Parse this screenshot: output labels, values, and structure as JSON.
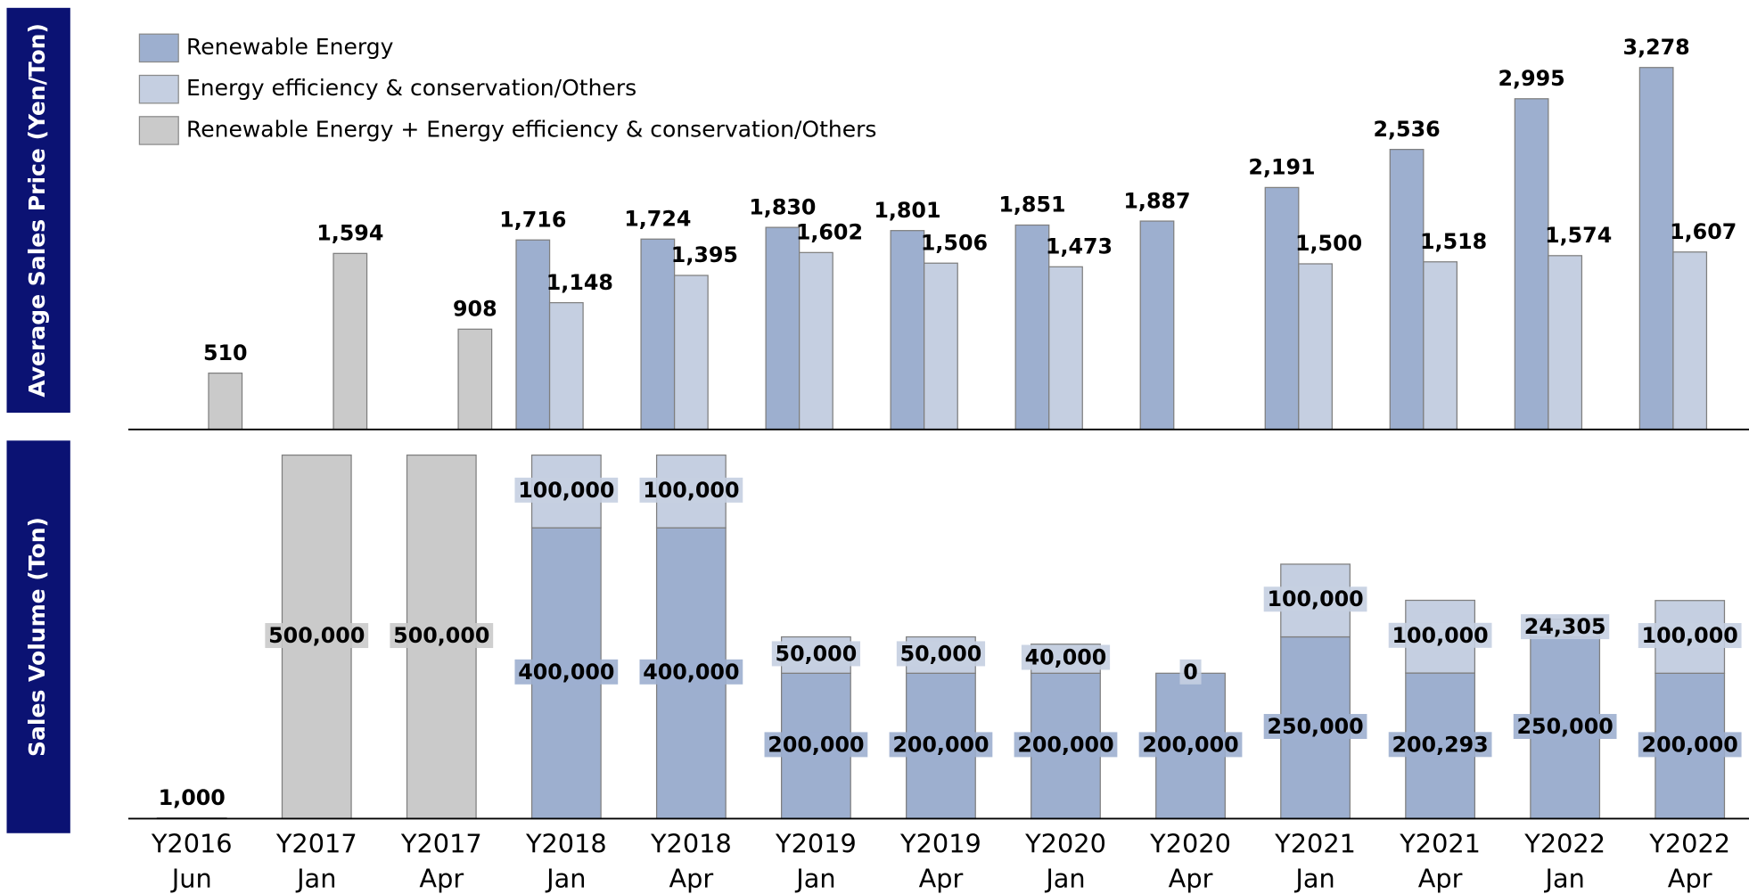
{
  "chart_data": [
    {
      "type": "bar",
      "ylabel": "Average Sales Price (Yen/Ton)",
      "ylim": [
        0,
        3500
      ],
      "legend": "top-left",
      "grid": false,
      "series": [
        {
          "name": "Renewable Energy",
          "color": "#9dafcf",
          "values": [
            null,
            null,
            null,
            1716,
            1724,
            1830,
            1801,
            1851,
            1887,
            2191,
            2536,
            2995,
            3278
          ],
          "value_labels": [
            null,
            null,
            null,
            "1,716",
            "1,724",
            "1,830",
            "1,801",
            "1,851",
            "1,887",
            "2,191",
            "2,536",
            "2,995",
            "3,278"
          ]
        },
        {
          "name": "Energy efficiency & conservation/Others",
          "color": "#c5cfe1",
          "values": [
            null,
            null,
            null,
            1148,
            1395,
            1602,
            1506,
            1473,
            null,
            1500,
            1518,
            1574,
            1607
          ],
          "value_labels": [
            null,
            null,
            null,
            "1,148",
            "1,395",
            "1,602",
            "1,506",
            "1,473",
            null,
            "1,500",
            "1,518",
            "1,574",
            "1,607"
          ]
        },
        {
          "name": "Renewable Energy + Energy efficiency & conservation/Others",
          "color": "#cacaca",
          "values": [
            510,
            1594,
            908,
            null,
            null,
            null,
            null,
            null,
            null,
            null,
            null,
            null,
            null
          ],
          "value_labels": [
            null,
            "1,594",
            null,
            null,
            null,
            null,
            null,
            null,
            null,
            null,
            null,
            null,
            null
          ]
        }
      ]
    },
    {
      "type": "stacked_bar",
      "ylabel": "Sales Volume (Ton)",
      "ylim": [
        0,
        500000
      ],
      "grid": false,
      "categories": [
        [
          "Y2016",
          "Jun"
        ],
        [
          "Y2017",
          "Jan"
        ],
        [
          "Y2017",
          "Apr"
        ],
        [
          "Y2018",
          "Jan"
        ],
        [
          "Y2018",
          "Apr"
        ],
        [
          "Y2019",
          "Jan"
        ],
        [
          "Y2019",
          "Apr"
        ],
        [
          "Y2020",
          "Jan"
        ],
        [
          "Y2020",
          "Apr"
        ],
        [
          "Y2021",
          "Jan"
        ],
        [
          "Y2021",
          "Apr"
        ],
        [
          "Y2022",
          "Jan"
        ],
        [
          "Y2022",
          "Apr"
        ]
      ],
      "series": [
        {
          "color": "#9dafcf",
          "values": [
            null,
            null,
            null,
            400000,
            400000,
            200000,
            200000,
            200000,
            200000,
            250000,
            200293,
            250000,
            200000
          ],
          "value_labels": [
            null,
            null,
            null,
            "400,000",
            "400,000",
            "200,000",
            "200,000",
            "200,000",
            "200,000",
            "250,000",
            "200,293",
            "250,000",
            "200,000"
          ]
        },
        {
          "color": "#c5cfe1",
          "values": [
            null,
            null,
            null,
            100000,
            100000,
            50000,
            50000,
            40000,
            0,
            100000,
            100000,
            24305,
            100000
          ],
          "value_labels": [
            null,
            null,
            null,
            "100,000",
            "100,000",
            "50,000",
            "50,000",
            "40,000",
            null,
            "100,000",
            "100,000",
            "24,305",
            "100,000"
          ]
        },
        {
          "color": "#cacaca",
          "values": [
            1000,
            500000,
            500000,
            null,
            null,
            null,
            null,
            null,
            null,
            null,
            null,
            null,
            null
          ],
          "value_labels": [
            "1,000",
            "500,000",
            "500,000",
            null,
            null,
            null,
            null,
            null,
            null,
            null,
            null,
            null,
            null
          ]
        }
      ]
    }
  ]
}
